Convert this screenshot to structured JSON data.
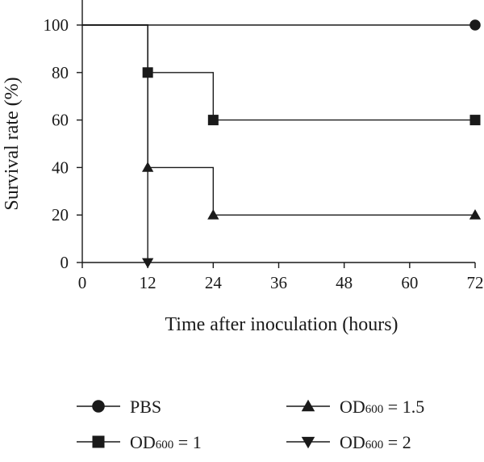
{
  "chart_data": {
    "type": "line",
    "step": true,
    "xlabel": "Time after inoculation (hours)",
    "ylabel": "Survival rate (%)",
    "xlim": [
      0,
      72
    ],
    "ylim": [
      0,
      100
    ],
    "xticks": [
      0,
      12,
      24,
      36,
      48,
      60,
      72
    ],
    "yticks": [
      0,
      20,
      40,
      60,
      80,
      100
    ],
    "x_tick_labels": [
      "0",
      "12",
      "24",
      "36",
      "48",
      "60",
      "72"
    ],
    "y_tick_labels": [
      "0",
      "20",
      "40",
      "60",
      "80",
      "100"
    ],
    "grid": false,
    "legend_position": "bottom",
    "series": [
      {
        "name": "PBS",
        "legend_text": "PBS",
        "legend_sub": "",
        "legend_tail": "",
        "marker": "circle",
        "color": "#1a1a1a",
        "x": [
          0,
          72
        ],
        "y": [
          100,
          100
        ],
        "marked_x": [
          72
        ]
      },
      {
        "name": "OD600 = 1",
        "legend_text": "OD",
        "legend_sub": "600",
        "legend_tail": " = 1",
        "marker": "square",
        "color": "#1a1a1a",
        "x": [
          0,
          12,
          24,
          72
        ],
        "y": [
          100,
          80,
          60,
          60
        ],
        "marked_x": [
          12,
          24,
          72
        ]
      },
      {
        "name": "OD600 = 1.5",
        "legend_text": "OD",
        "legend_sub": "600",
        "legend_tail": " = 1.5",
        "marker": "triangle-up",
        "color": "#1a1a1a",
        "x": [
          0,
          12,
          24,
          72
        ],
        "y": [
          100,
          40,
          20,
          20
        ],
        "marked_x": [
          12,
          24,
          72
        ]
      },
      {
        "name": "OD600 = 2",
        "legend_text": "OD",
        "legend_sub": "600",
        "legend_tail": " = 2",
        "marker": "triangle-down",
        "color": "#1a1a1a",
        "x": [
          0,
          12
        ],
        "y": [
          100,
          0
        ],
        "marked_x": [
          12
        ]
      }
    ]
  }
}
